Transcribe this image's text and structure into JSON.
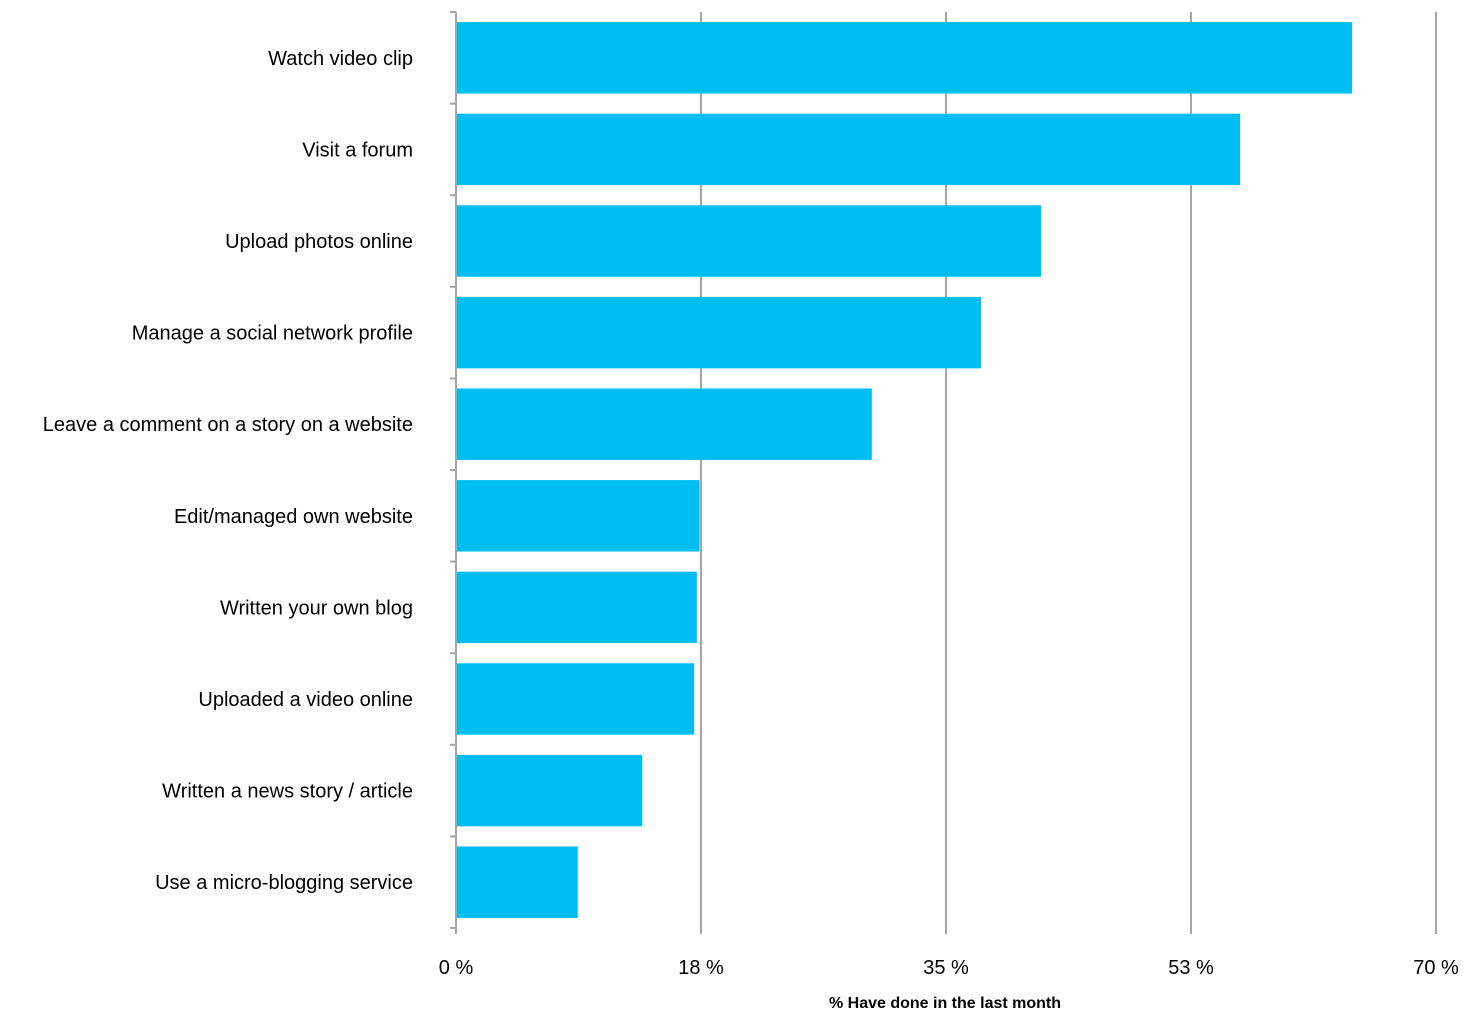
{
  "chart_data": {
    "type": "bar",
    "orientation": "horizontal",
    "categories": [
      "Watch video clip",
      "Visit a forum",
      "Upload photos online",
      "Manage a social network profile",
      "Leave a comment on a story on a website",
      "Edit/managed own website",
      "Written your own blog",
      "Uploaded a video online",
      "Written a news story / article",
      "Use a micro-blogging service"
    ],
    "values": [
      64.0,
      56.0,
      41.8,
      37.5,
      29.7,
      17.4,
      17.2,
      17.0,
      13.3,
      8.7
    ],
    "xlabel": "% Have done in the last month",
    "xlim": [
      0,
      70
    ],
    "x_ticks": [
      "0 %",
      "18 %",
      "35 %",
      "53 %",
      "70 %"
    ],
    "x_tick_values": [
      0,
      17.5,
      35,
      52.5,
      70
    ],
    "grid": "vertical",
    "legend": "none",
    "bar_color": "#00bef2"
  }
}
